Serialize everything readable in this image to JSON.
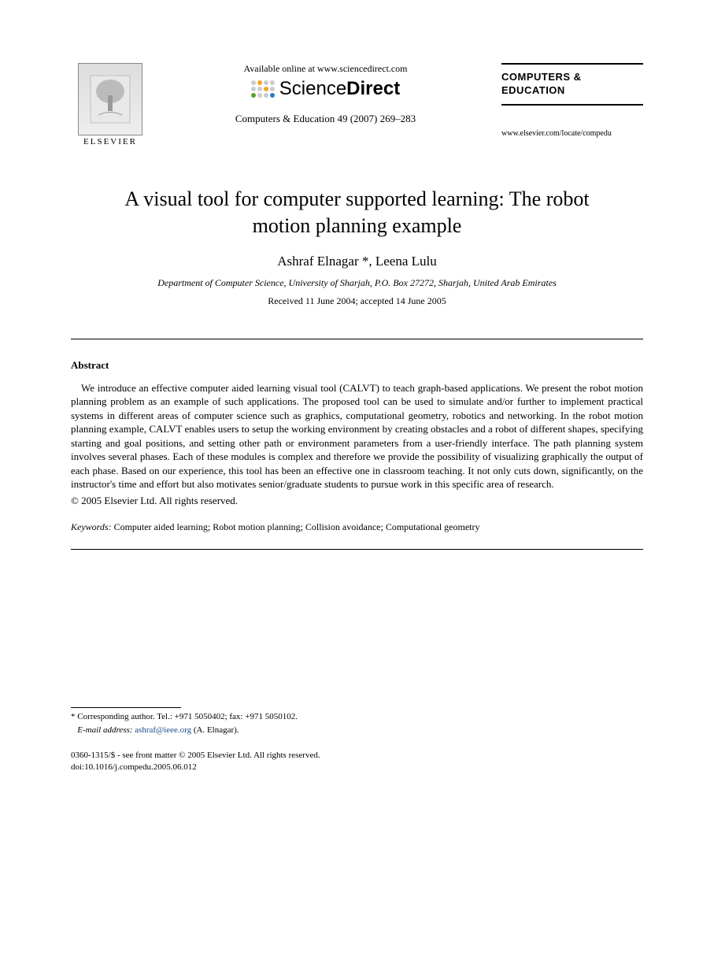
{
  "header": {
    "publisher_name": "ELSEVIER",
    "available_online": "Available online at www.sciencedirect.com",
    "sciencedirect_prefix": "Science",
    "sciencedirect_suffix": "Direct",
    "dot_colors": [
      "#cccccc",
      "#f5a623",
      "#cccccc",
      "#cccccc",
      "#cccccc",
      "#cccccc",
      "#f5a623",
      "#cccccc",
      "#5aa02c",
      "#cccccc",
      "#cccccc",
      "#2e7bbf"
    ],
    "citation": "Computers & Education 49 (2007) 269–283",
    "journal_name_line1": "COMPUTERS &",
    "journal_name_line2": "EDUCATION",
    "journal_url": "www.elsevier.com/locate/compedu"
  },
  "article": {
    "title": "A visual tool for computer supported learning: The robot motion planning example",
    "authors": "Ashraf Elnagar *, Leena Lulu",
    "affiliation": "Department of Computer Science, University of Sharjah, P.O. Box 27272, Sharjah, United Arab Emirates",
    "dates": "Received 11 June 2004; accepted 14 June 2005"
  },
  "abstract": {
    "heading": "Abstract",
    "body": "We introduce an effective computer aided learning visual tool (CALVT) to teach graph-based applications. We present the robot motion planning problem as an example of such applications. The proposed tool can be used to simulate and/or further to implement practical systems in different areas of computer science such as graphics, computational geometry, robotics and networking. In the robot motion planning example, CALVT enables users to setup the working environment by creating obstacles and a robot of different shapes, specifying starting and goal positions, and setting other path or environment parameters from a user-friendly interface. The path planning system involves several phases. Each of these modules is complex and therefore we provide the possibility of visualizing graphically the output of each phase. Based on our experience, this tool has been an effective one in classroom teaching. It not only cuts down, significantly, on the instructor's time and effort but also motivates senior/graduate students to pursue work in this specific area of research.",
    "copyright": "© 2005 Elsevier Ltd. All rights reserved."
  },
  "keywords": {
    "label": "Keywords:",
    "text": " Computer aided learning; Robot motion planning; Collision avoidance; Computational geometry"
  },
  "footnote": {
    "corresponding": "* Corresponding author. Tel.: +971 5050402; fax: +971 5050102.",
    "email_label": "E-mail address:",
    "email": "ashraf@ieee.org",
    "email_suffix": " (A. Elnagar)."
  },
  "issn": {
    "line1": "0360-1315/$ - see front matter © 2005 Elsevier Ltd. All rights reserved.",
    "line2": "doi:10.1016/j.compedu.2005.06.012"
  },
  "colors": {
    "text": "#000000",
    "link": "#1a4b8c",
    "background": "#ffffff"
  },
  "typography": {
    "title_fontsize_pt": 20,
    "body_fontsize_pt": 10,
    "font_family": "Times / Georgia serif"
  }
}
